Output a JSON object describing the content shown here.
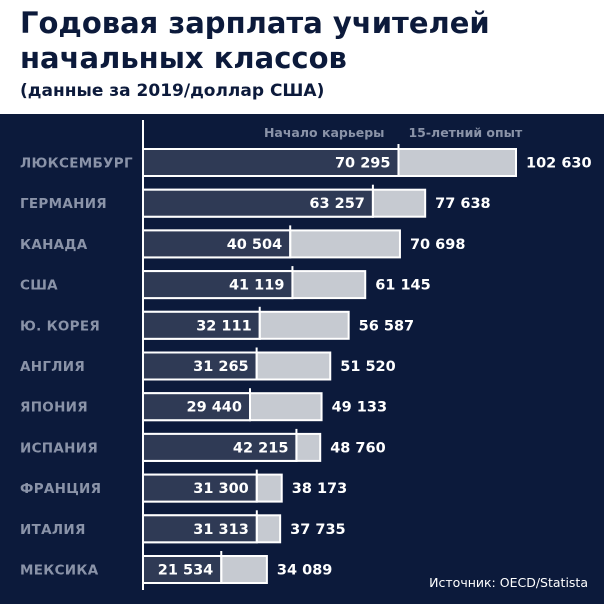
{
  "header": {
    "title_line1": "Годовая зарплата учителей",
    "title_line2": "начальных классов",
    "subtitle": "(данные за 2019/доллар США)"
  },
  "source": "Источник: OECD/Statista",
  "colors": {
    "background": "#0c1a3b",
    "bar_start": "#2f3a55",
    "bar_experience": "#c6cad1",
    "bar_outline": "#ffffff",
    "category_label": "#8a93a8",
    "legend_label": "#8a93a8",
    "value_label": "#ffffff"
  },
  "chart_data": {
    "type": "bar",
    "orientation": "horizontal",
    "xlim": [
      0,
      102630
    ],
    "categories": [
      "ЛЮКСЕМБУРГ",
      "ГЕРМАНИЯ",
      "КАНАДА",
      "США",
      "Ю. КОРЕЯ",
      "АНГЛИЯ",
      "ЯПОНИЯ",
      "ИСПАНИЯ",
      "ФРАНЦИЯ",
      "ИТАЛИЯ",
      "МЕКСИКА"
    ],
    "series": [
      {
        "name": "Начало карьеры",
        "values": [
          70295,
          63257,
          40504,
          41119,
          32111,
          31265,
          29440,
          42215,
          31300,
          31313,
          21534
        ],
        "labels": [
          "70 295",
          "63 257",
          "40 504",
          "41 119",
          "32 111",
          "31 265",
          "29 440",
          "42 215",
          "31 300",
          "31 313",
          "21 534"
        ]
      },
      {
        "name": "15-летний опыт",
        "values": [
          102630,
          77638,
          70698,
          61145,
          56587,
          51520,
          49133,
          48760,
          38173,
          37735,
          34089
        ],
        "labels": [
          "102 630",
          "77 638",
          "70 698",
          "61 145",
          "56 587",
          "51 520",
          "49 133",
          "48 760",
          "38 173",
          "37 735",
          "34 089"
        ]
      }
    ],
    "legend": "top-right"
  }
}
